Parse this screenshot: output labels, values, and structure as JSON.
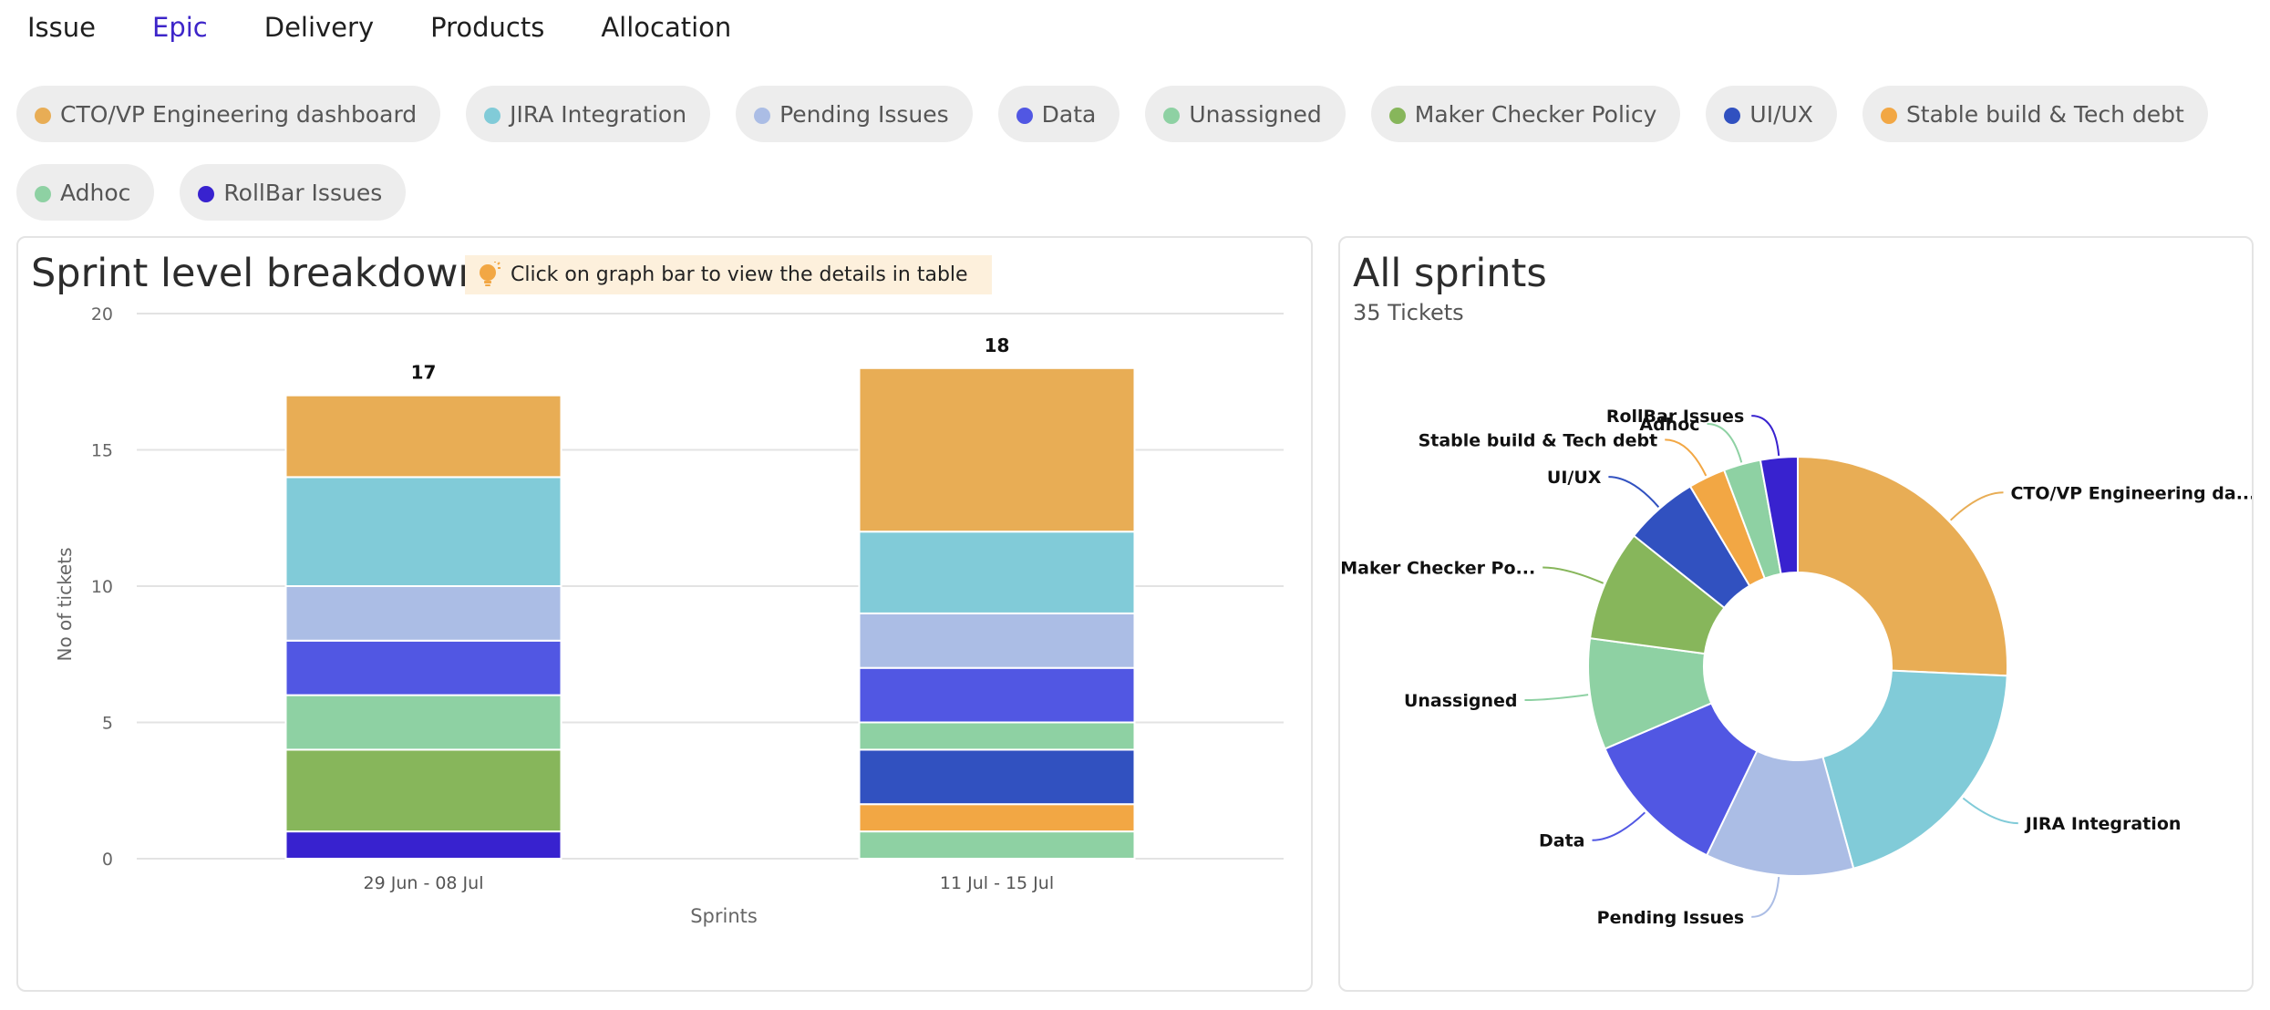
{
  "tabs": [
    {
      "label": "Issue",
      "active": false
    },
    {
      "label": "Epic",
      "active": true
    },
    {
      "label": "Delivery",
      "active": false
    },
    {
      "label": "Products",
      "active": false
    },
    {
      "label": "Allocation",
      "active": false
    }
  ],
  "epics": [
    {
      "label": "CTO/VP Engineering dashboard",
      "color": "#e8ad55"
    },
    {
      "label": "JIRA Integration",
      "color": "#81cbd8"
    },
    {
      "label": "Pending Issues",
      "color": "#abbde5"
    },
    {
      "label": "Data",
      "color": "#5157e3"
    },
    {
      "label": "Unassigned",
      "color": "#8ed1a3"
    },
    {
      "label": "Maker Checker Policy",
      "color": "#87b65b"
    },
    {
      "label": "UI/UX",
      "color": "#3151c0"
    },
    {
      "label": "Stable build & Tech debt",
      "color": "#f2a744"
    },
    {
      "label": "Adhoc",
      "color": "#8ed1a3"
    },
    {
      "label": "RollBar Issues",
      "color": "#3822cf"
    }
  ],
  "left_panel": {
    "title": "Sprint level breakdown",
    "hint": "Click on graph bar to view the details in table",
    "hint_icon": "lightbulb-icon"
  },
  "right_panel": {
    "title": "All sprints",
    "subtitle": "35 Tickets"
  },
  "chart_data": [
    {
      "type": "bar",
      "stacked": true,
      "title": "Sprint level breakdown",
      "xlabel": "Sprints",
      "ylabel": "No of tickets",
      "ylim": [
        0,
        20
      ],
      "yticks": [
        0,
        5,
        10,
        15,
        20
      ],
      "grid": true,
      "categories": [
        "29 Jun - 08 Jul",
        "11 Jul - 15 Jul"
      ],
      "totals": [
        17,
        18
      ],
      "series": [
        {
          "name": "RollBar Issues",
          "color": "#3822cf",
          "values": [
            1,
            0
          ]
        },
        {
          "name": "Adhoc",
          "color": "#8ed1a3",
          "values": [
            0,
            1
          ]
        },
        {
          "name": "Stable build & Tech debt",
          "color": "#f2a744",
          "values": [
            0,
            1
          ]
        },
        {
          "name": "UI/UX",
          "color": "#3151c0",
          "values": [
            0,
            2
          ]
        },
        {
          "name": "Maker Checker Policy",
          "color": "#87b65b",
          "values": [
            3,
            0
          ]
        },
        {
          "name": "Unassigned",
          "color": "#8ed1a3",
          "values": [
            2,
            1
          ]
        },
        {
          "name": "Data",
          "color": "#5157e3",
          "values": [
            2,
            2
          ]
        },
        {
          "name": "Pending Issues",
          "color": "#abbde5",
          "values": [
            2,
            2
          ]
        },
        {
          "name": "JIRA Integration",
          "color": "#81cbd8",
          "values": [
            4,
            3
          ]
        },
        {
          "name": "CTO/VP Engineering dashboard",
          "color": "#e8ad55",
          "values": [
            3,
            6
          ]
        }
      ]
    },
    {
      "type": "pie",
      "donut": true,
      "title": "All sprints",
      "total_label": "35 Tickets",
      "slices": [
        {
          "label": "CTO/VP Engineering da...",
          "value": 9,
          "color": "#e8ad55"
        },
        {
          "label": "JIRA Integration",
          "value": 7,
          "color": "#81cbd8"
        },
        {
          "label": "Pending Issues",
          "value": 4,
          "color": "#abbde5"
        },
        {
          "label": "Data",
          "value": 4,
          "color": "#5157e3"
        },
        {
          "label": "Unassigned",
          "value": 3,
          "color": "#8ed1a3"
        },
        {
          "label": "Maker Checker Po...",
          "value": 3,
          "color": "#87b65b"
        },
        {
          "label": "UI/UX",
          "value": 2,
          "color": "#3151c0"
        },
        {
          "label": "Stable build & Tech debt",
          "value": 1,
          "color": "#f2a744"
        },
        {
          "label": "Adhoc",
          "value": 1,
          "color": "#8ed1a3"
        },
        {
          "label": "RollBar Issues",
          "value": 1,
          "color": "#3822cf"
        }
      ]
    }
  ]
}
